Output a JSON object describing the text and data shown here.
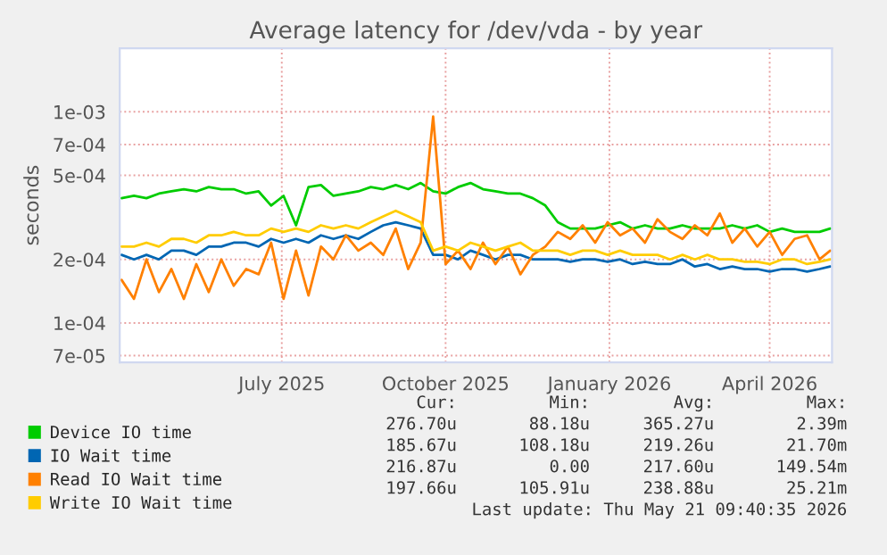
{
  "chart_data": {
    "type": "line",
    "title": "Average latency for /dev/vda - by year",
    "ylabel": "seconds",
    "x": [
      "2025-04-17",
      "2025-04-24",
      "2025-05-01",
      "2025-05-08",
      "2025-05-15",
      "2025-05-22",
      "2025-05-29",
      "2025-06-05",
      "2025-06-12",
      "2025-06-19",
      "2025-06-26",
      "2025-07-03",
      "2025-07-10",
      "2025-07-17",
      "2025-07-24",
      "2025-07-31",
      "2025-08-07",
      "2025-08-14",
      "2025-08-21",
      "2025-08-28",
      "2025-09-04",
      "2025-09-11",
      "2025-09-18",
      "2025-09-25",
      "2025-10-02",
      "2025-10-09",
      "2025-10-16",
      "2025-10-23",
      "2025-10-30",
      "2025-11-06",
      "2025-11-13",
      "2025-11-20",
      "2025-11-27",
      "2025-12-04",
      "2025-12-11",
      "2025-12-18",
      "2025-12-25",
      "2026-01-01",
      "2026-01-08",
      "2026-01-15",
      "2026-01-22",
      "2026-01-29",
      "2026-02-05",
      "2026-02-12",
      "2026-02-19",
      "2026-02-26",
      "2026-03-05",
      "2026-03-12",
      "2026-03-19",
      "2026-03-26",
      "2026-04-02",
      "2026-04-09",
      "2026-04-16",
      "2026-04-23",
      "2026-04-30",
      "2026-05-07",
      "2026-05-14",
      "2026-05-20"
    ],
    "series": [
      {
        "name": "Device IO time",
        "color": "#00cc00",
        "values": [
          0.00039,
          0.0004,
          0.00039,
          0.00041,
          0.00042,
          0.00043,
          0.00042,
          0.00044,
          0.00043,
          0.00043,
          0.00041,
          0.00042,
          0.00036,
          0.0004,
          0.00029,
          0.00044,
          0.00045,
          0.0004,
          0.00041,
          0.00042,
          0.00044,
          0.00043,
          0.00045,
          0.00043,
          0.00046,
          0.00042,
          0.00041,
          0.00044,
          0.00046,
          0.00043,
          0.00042,
          0.00041,
          0.00041,
          0.00039,
          0.00036,
          0.0003,
          0.00028,
          0.00028,
          0.00028,
          0.00029,
          0.0003,
          0.00028,
          0.00029,
          0.00028,
          0.00028,
          0.00029,
          0.00028,
          0.00028,
          0.00028,
          0.00029,
          0.00028,
          0.00029,
          0.00027,
          0.00028,
          0.00027,
          0.00027,
          0.00027,
          0.00028
        ]
      },
      {
        "name": "IO Wait time",
        "color": "#0066b3",
        "values": [
          0.00021,
          0.0002,
          0.00021,
          0.0002,
          0.00022,
          0.00022,
          0.00021,
          0.00023,
          0.00023,
          0.00024,
          0.00024,
          0.00023,
          0.00025,
          0.00024,
          0.00025,
          0.00024,
          0.00026,
          0.00025,
          0.00026,
          0.00025,
          0.00027,
          0.00029,
          0.0003,
          0.00029,
          0.00028,
          0.00021,
          0.00021,
          0.0002,
          0.00022,
          0.00021,
          0.0002,
          0.00021,
          0.00021,
          0.0002,
          0.0002,
          0.0002,
          0.000195,
          0.0002,
          0.0002,
          0.000195,
          0.0002,
          0.00019,
          0.000195,
          0.00019,
          0.00019,
          0.0002,
          0.000185,
          0.00019,
          0.00018,
          0.000185,
          0.00018,
          0.00018,
          0.000175,
          0.00018,
          0.00018,
          0.000175,
          0.00018,
          0.000185
        ]
      },
      {
        "name": "Read IO Wait time",
        "color": "#ff8000",
        "values": [
          0.00016,
          0.00013,
          0.0002,
          0.00014,
          0.00018,
          0.00013,
          0.00019,
          0.00014,
          0.0002,
          0.00015,
          0.00018,
          0.00017,
          0.00024,
          0.00013,
          0.00022,
          0.000135,
          0.00023,
          0.0002,
          0.00026,
          0.00022,
          0.00024,
          0.00021,
          0.00028,
          0.00018,
          0.00024,
          0.00095,
          0.00019,
          0.00022,
          0.00018,
          0.00024,
          0.00019,
          0.00023,
          0.00017,
          0.00021,
          0.00023,
          0.00027,
          0.00025,
          0.00029,
          0.00024,
          0.0003,
          0.00026,
          0.00028,
          0.00024,
          0.00031,
          0.00027,
          0.00025,
          0.00029,
          0.00026,
          0.00033,
          0.00024,
          0.00028,
          0.00023,
          0.00027,
          0.00021,
          0.00025,
          0.00026,
          0.0002,
          0.00022
        ]
      },
      {
        "name": "Write IO Wait time",
        "color": "#ffcc00",
        "values": [
          0.00023,
          0.00023,
          0.00024,
          0.00023,
          0.00025,
          0.00025,
          0.00024,
          0.00026,
          0.00026,
          0.00027,
          0.00026,
          0.00026,
          0.00028,
          0.00027,
          0.00028,
          0.00027,
          0.00029,
          0.00028,
          0.00029,
          0.00028,
          0.0003,
          0.00032,
          0.00034,
          0.00032,
          0.0003,
          0.00022,
          0.00023,
          0.00022,
          0.00024,
          0.00023,
          0.00022,
          0.00023,
          0.00024,
          0.00022,
          0.00022,
          0.00022,
          0.00021,
          0.00022,
          0.00022,
          0.00021,
          0.00022,
          0.00021,
          0.00021,
          0.00021,
          0.0002,
          0.00021,
          0.0002,
          0.00021,
          0.0002,
          0.0002,
          0.000195,
          0.000195,
          0.00019,
          0.0002,
          0.0002,
          0.00019,
          0.000195,
          0.0002
        ]
      }
    ],
    "log": true,
    "xlim": [
      "2025-04-16",
      "2026-05-21"
    ],
    "xticks": [
      {
        "value": "2025-07-16",
        "label": "July 2025"
      },
      {
        "value": "2025-10-16",
        "label": "October 2025"
      },
      {
        "value": "2026-01-16",
        "label": "January 2026"
      },
      {
        "value": "2026-04-16",
        "label": "April 2026"
      }
    ],
    "ylim": [
      6.5e-05,
      0.002
    ],
    "yticks": [
      {
        "value": 7e-05,
        "label": "7e-05"
      },
      {
        "value": 0.0001,
        "label": "1e-04"
      },
      {
        "value": 0.0002,
        "label": "2e-04"
      },
      {
        "value": 0.0005,
        "label": "5e-04"
      },
      {
        "value": 0.0007,
        "label": "7e-04"
      },
      {
        "value": 0.001,
        "label": "1e-03"
      }
    ],
    "grid": true,
    "legend": "bottom left",
    "line_style": "solid",
    "annotations": [
      "Cur:",
      "Min:",
      "Avg:",
      "Max:",
      "276.70u",
      "88.18u",
      "365.27u",
      "2.39m",
      "185.67u",
      "108.18u",
      "219.26u",
      "21.70m",
      "216.87u",
      "0.00",
      "217.60u",
      "149.54m",
      "197.66u",
      "105.91u",
      "238.88u",
      "25.21m",
      "Last update: Thu May 21 09:40:35 2026"
    ]
  }
}
